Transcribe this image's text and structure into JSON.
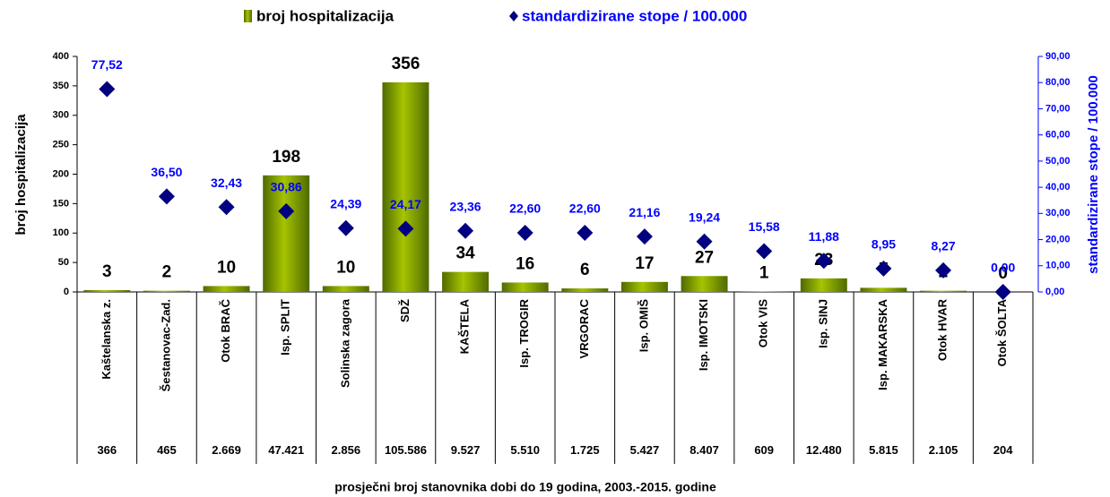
{
  "chart_data": {
    "type": "bar",
    "categories": [
      "Kaštelanska z.",
      "Šestanovac-Zad.",
      "Otok BRAČ",
      "Isp. SPLIT",
      "Solinska zagora",
      "SDŽ",
      "KAŠTELA",
      "Isp. TROGIR",
      "VRGORAC",
      "Isp. OMIŠ",
      "Isp. IMOTSKI",
      "Otok VIS",
      "Isp. SINJ",
      "Isp. MAKARSKA",
      "Otok HVAR",
      "Otok ŠOLTA"
    ],
    "series": [
      {
        "name": "broj hospitalizacija",
        "type": "bar",
        "color": "#7a9a01",
        "values": [
          3,
          2,
          10,
          198,
          10,
          356,
          34,
          16,
          6,
          17,
          27,
          1,
          23,
          7,
          2,
          0
        ]
      },
      {
        "name": "standardizirane stope / 100.000",
        "type": "scatter",
        "axis": "y2",
        "color": "#000080",
        "label_color": "#0000ff",
        "values": [
          77.52,
          36.5,
          32.43,
          30.86,
          24.39,
          24.17,
          23.36,
          22.6,
          22.6,
          21.16,
          19.24,
          15.58,
          11.88,
          8.95,
          8.27,
          0
        ],
        "value_labels": [
          "77,52",
          "36,50",
          "32,43",
          "30,86",
          "24,39",
          "24,17",
          "23,36",
          "22,60",
          "22,60",
          "21,16",
          "19,24",
          "15,58",
          "11,88",
          "8,95",
          "8,27",
          "0,00"
        ]
      }
    ],
    "ylabel": "broj hospitalizacija",
    "y2label": "standardizirane stope / 100.000",
    "ylim": [
      0,
      400
    ],
    "yticks": [
      0,
      50,
      100,
      150,
      200,
      250,
      300,
      350,
      400
    ],
    "y2lim": [
      0,
      90
    ],
    "y2ticks": [
      {
        "value": 0,
        "label": "0,00"
      },
      {
        "value": 10,
        "label": "10,00"
      },
      {
        "value": 20,
        "label": "20,00"
      },
      {
        "value": 30,
        "label": "30,00"
      },
      {
        "value": 40,
        "label": "40,00"
      },
      {
        "value": 50,
        "label": "50,00"
      },
      {
        "value": 60,
        "label": "60,00"
      },
      {
        "value": 70,
        "label": "70,00"
      },
      {
        "value": 80,
        "label": "80,00"
      },
      {
        "value": 90,
        "label": "90,00"
      }
    ],
    "table": {
      "title": "prosječni broj stanovnika dobi do 19 godina, 2003.-2015. godine",
      "row": [
        "366",
        "465",
        "2.669",
        "47.421",
        "2.856",
        "105.586",
        "9.527",
        "5.510",
        "1.725",
        "5.427",
        "8.407",
        "609",
        "12.480",
        "5.815",
        "2.105",
        "204"
      ]
    }
  }
}
